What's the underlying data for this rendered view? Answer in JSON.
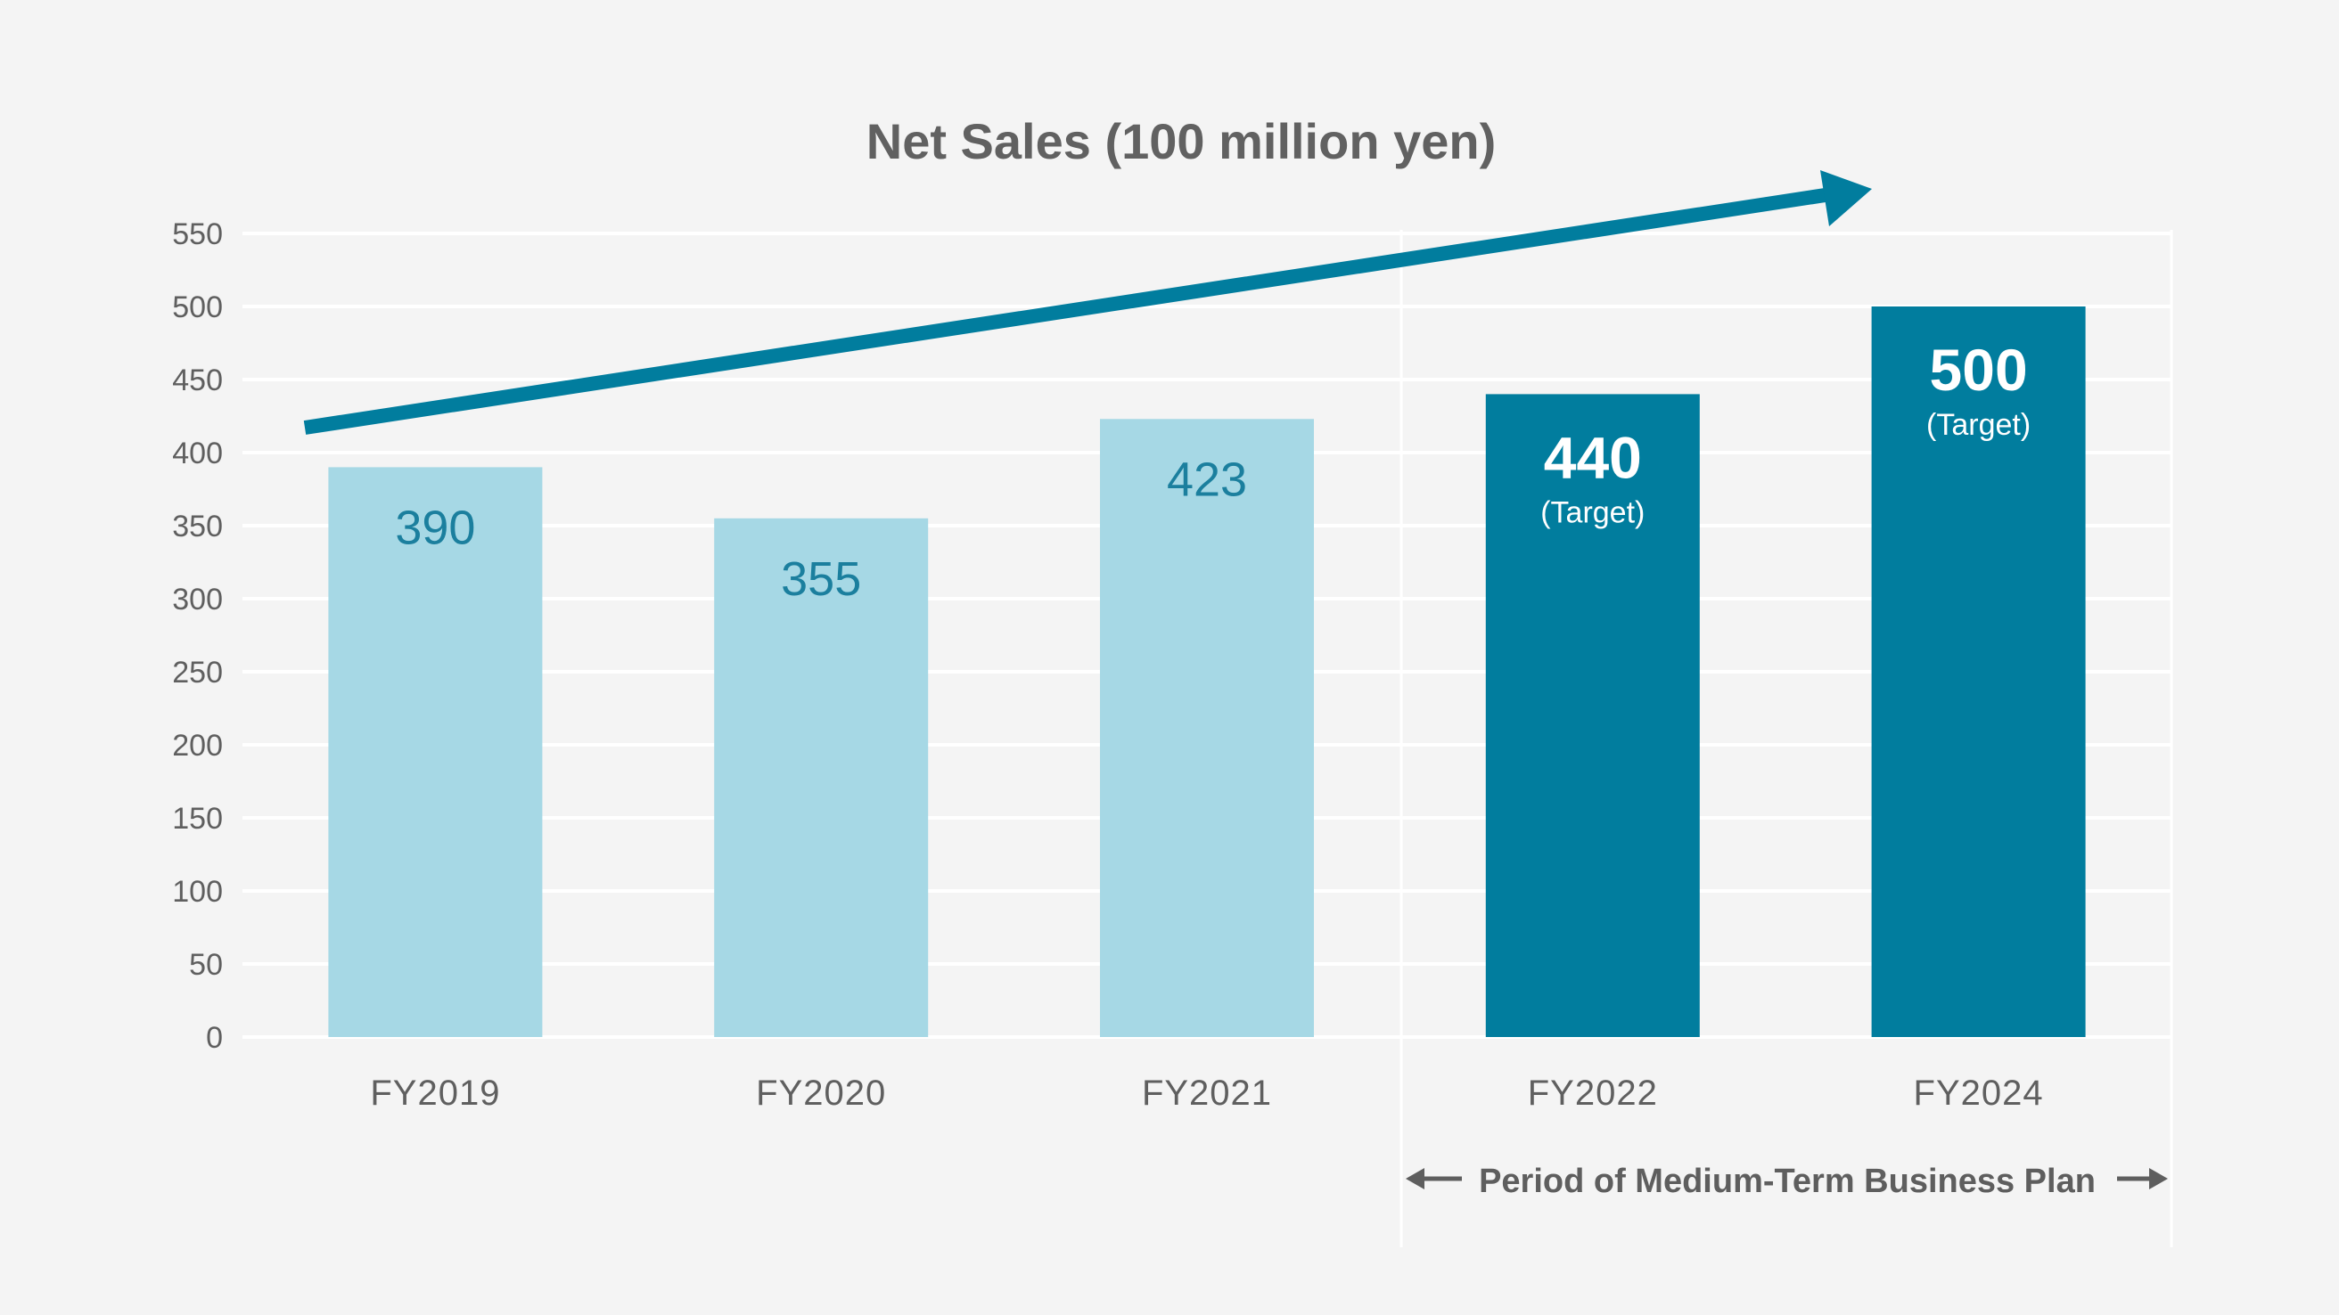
{
  "chart_data": {
    "type": "bar",
    "title": "Net Sales (100 million yen)",
    "xlabel": "",
    "ylabel": "",
    "categories": [
      "FY2019",
      "FY2020",
      "FY2021",
      "FY2022",
      "FY2024"
    ],
    "values": [
      390,
      355,
      423,
      440,
      500
    ],
    "value_labels": [
      "390",
      "355",
      "423",
      "440",
      "500"
    ],
    "target_flags": [
      false,
      false,
      false,
      true,
      true
    ],
    "target_note": "(Target)",
    "ylim": [
      0,
      550
    ],
    "yticks": [
      0,
      50,
      100,
      150,
      200,
      250,
      300,
      350,
      400,
      450,
      500,
      550
    ],
    "grid": true,
    "legend": "none",
    "annotation": "Period of Medium-Term Business Plan",
    "colors": {
      "actual_bar": "#a6d8e5",
      "target_bar": "#017d9e",
      "actual_label": "#1b7f9e",
      "trend_arrow": "#017d9e",
      "grid": "#ffffff",
      "text": "#616161",
      "background": "#f4f4f4"
    }
  }
}
